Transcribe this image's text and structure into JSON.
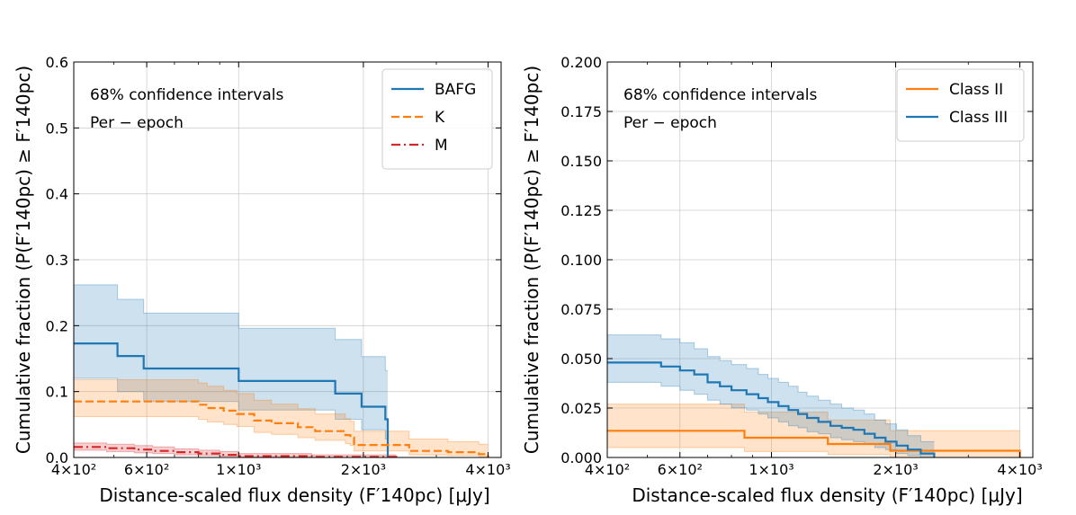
{
  "figure": {
    "xlabel": "Distance-scaled flux density (F′140pc) [μJy]"
  },
  "colors": {
    "blue": "#1f77b4",
    "orange": "#ff7f0e",
    "red": "#d62728",
    "grid": "#b0b0b0"
  },
  "chart_data": [
    {
      "type": "line",
      "step": true,
      "xscale": "log",
      "xlim": [
        400,
        4300
      ],
      "ylim": [
        0,
        0.6
      ],
      "xticks": [
        {
          "v": 400,
          "label": "4×10²"
        },
        {
          "v": 600,
          "label": "6×10²"
        },
        {
          "v": 1000,
          "label": "1×10³"
        },
        {
          "v": 2000,
          "label": "2×10³"
        },
        {
          "v": 4000,
          "label": "4×10³"
        }
      ],
      "yticks": [
        {
          "v": 0,
          "label": "0.0"
        },
        {
          "v": 0.1,
          "label": "0.1"
        },
        {
          "v": 0.2,
          "label": "0.2"
        },
        {
          "v": 0.3,
          "label": "0.3"
        },
        {
          "v": 0.4,
          "label": "0.4"
        },
        {
          "v": 0.5,
          "label": "0.5"
        },
        {
          "v": 0.6,
          "label": "0.6"
        }
      ],
      "xlabel": "Distance-scaled flux density (F′140pc) [μJy]",
      "ylabel": "Cumulative fraction (P(F′140pc) ≥ F′140pc)",
      "annotations": [
        "68% confidence intervals",
        "Per − epoch"
      ],
      "legend_position": "top-right",
      "series": [
        {
          "name": "BAFG",
          "color": "blue",
          "dash": "solid",
          "x": [
            400,
            510,
            590,
            1000,
            1710,
            1980,
            2260,
            2290
          ],
          "y": [
            0.173,
            0.154,
            0.135,
            0.116,
            0.097,
            0.077,
            0.058,
            0.0
          ],
          "lower": [
            0.12,
            0.1,
            0.085,
            0.072,
            0.058,
            0.042,
            0.028,
            0.0
          ],
          "upper": [
            0.262,
            0.24,
            0.219,
            0.196,
            0.179,
            0.153,
            0.132,
            0.0
          ]
        },
        {
          "name": "K",
          "color": "orange",
          "dash": "dashed",
          "x": [
            400,
            800,
            840,
            920,
            990,
            1090,
            1200,
            1390,
            1530,
            1810,
            1860,
            1900,
            2120,
            2580,
            3200,
            3800,
            4000
          ],
          "y": [
            0.085,
            0.08,
            0.075,
            0.071,
            0.066,
            0.056,
            0.052,
            0.046,
            0.04,
            0.034,
            0.03,
            0.019,
            0.019,
            0.01,
            0.008,
            0.005,
            0.0
          ],
          "lower": [
            0.062,
            0.058,
            0.054,
            0.05,
            0.047,
            0.038,
            0.035,
            0.03,
            0.026,
            0.021,
            0.018,
            0.01,
            0.01,
            0.004,
            0.003,
            0.001,
            0.0
          ],
          "upper": [
            0.118,
            0.113,
            0.108,
            0.102,
            0.097,
            0.087,
            0.081,
            0.074,
            0.066,
            0.059,
            0.055,
            0.04,
            0.04,
            0.028,
            0.024,
            0.02,
            0.0
          ]
        },
        {
          "name": "M",
          "color": "red",
          "dash": "dashdot",
          "x": [
            400,
            480,
            560,
            620,
            700,
            800,
            900,
            1000,
            1500,
            2400
          ],
          "y": [
            0.016,
            0.014,
            0.012,
            0.01,
            0.008,
            0.006,
            0.004,
            0.002,
            0.001,
            0.0
          ],
          "lower": [
            0.011,
            0.009,
            0.007,
            0.006,
            0.004,
            0.003,
            0.002,
            0.001,
            0.0,
            0.0
          ],
          "upper": [
            0.022,
            0.02,
            0.018,
            0.016,
            0.013,
            0.011,
            0.009,
            0.006,
            0.004,
            0.0
          ]
        }
      ]
    },
    {
      "type": "line",
      "step": true,
      "xscale": "log",
      "xlim": [
        400,
        4300
      ],
      "ylim": [
        0,
        0.2
      ],
      "xticks": [
        {
          "v": 400,
          "label": "4×10²"
        },
        {
          "v": 600,
          "label": "6×10²"
        },
        {
          "v": 1000,
          "label": "1×10³"
        },
        {
          "v": 2000,
          "label": "2×10³"
        },
        {
          "v": 4000,
          "label": "4×10³"
        }
      ],
      "yticks": [
        {
          "v": 0,
          "label": "0.000"
        },
        {
          "v": 0.025,
          "label": "0.025"
        },
        {
          "v": 0.05,
          "label": "0.050"
        },
        {
          "v": 0.075,
          "label": "0.075"
        },
        {
          "v": 0.1,
          "label": "0.100"
        },
        {
          "v": 0.125,
          "label": "0.125"
        },
        {
          "v": 0.15,
          "label": "0.150"
        },
        {
          "v": 0.175,
          "label": "0.175"
        },
        {
          "v": 0.2,
          "label": "0.200"
        }
      ],
      "xlabel": "Distance-scaled flux density (F′140pc) [μJy]",
      "ylabel": "Cumulative fraction (P(F′140pc) ≥ F′140pc)",
      "annotations": [
        "68% confidence intervals",
        "Per − epoch"
      ],
      "legend_position": "top-right",
      "series": [
        {
          "name": "Class II",
          "color": "orange",
          "dash": "solid",
          "x": [
            400,
            860,
            1370,
            1940,
            4000
          ],
          "y": [
            0.0135,
            0.01,
            0.0068,
            0.0034,
            0.0
          ],
          "lower": [
            0.005,
            0.003,
            0.0015,
            0.0,
            0.0
          ],
          "upper": [
            0.027,
            0.023,
            0.019,
            0.0135,
            0.0
          ]
        },
        {
          "name": "Class III",
          "color": "blue",
          "dash": "solid",
          "x": [
            400,
            540,
            600,
            650,
            700,
            750,
            800,
            870,
            930,
            980,
            1040,
            1100,
            1160,
            1220,
            1300,
            1390,
            1480,
            1580,
            1680,
            1780,
            1890,
            2010,
            2140,
            2300,
            2480
          ],
          "y": [
            0.048,
            0.046,
            0.044,
            0.042,
            0.038,
            0.036,
            0.034,
            0.032,
            0.03,
            0.028,
            0.026,
            0.024,
            0.022,
            0.02,
            0.018,
            0.016,
            0.015,
            0.014,
            0.012,
            0.01,
            0.008,
            0.006,
            0.004,
            0.002,
            0.0
          ],
          "lower": [
            0.038,
            0.036,
            0.034,
            0.032,
            0.029,
            0.027,
            0.025,
            0.024,
            0.022,
            0.02,
            0.018,
            0.016,
            0.015,
            0.013,
            0.012,
            0.01,
            0.009,
            0.008,
            0.007,
            0.005,
            0.004,
            0.002,
            0.001,
            0.0,
            0.0
          ],
          "upper": [
            0.062,
            0.06,
            0.058,
            0.055,
            0.051,
            0.049,
            0.047,
            0.045,
            0.042,
            0.04,
            0.038,
            0.036,
            0.033,
            0.031,
            0.029,
            0.027,
            0.025,
            0.024,
            0.022,
            0.019,
            0.017,
            0.014,
            0.011,
            0.008,
            0.0
          ]
        }
      ]
    }
  ]
}
